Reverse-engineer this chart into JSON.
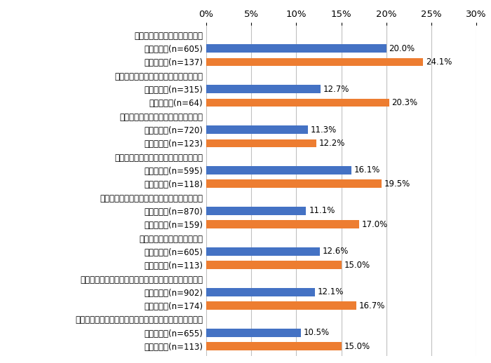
{
  "rows": [
    {
      "label": "助成金や補助金などの財源獲得",
      "type": "header",
      "value": null,
      "color": null
    },
    {
      "label": "事務系職員(n=605)",
      "type": "jimu",
      "value": 20.0,
      "color": "#4472c4"
    },
    {
      "label": "技術系職員(n=137)",
      "type": "gijutsu",
      "value": 24.1,
      "color": "#ed7d31"
    },
    {
      "label": "モデル事業や国家戦略特区などへの採択",
      "type": "header",
      "value": null,
      "color": null
    },
    {
      "label": "事務系職員(n=315)",
      "type": "jimu",
      "value": 12.7,
      "color": "#4472c4"
    },
    {
      "label": "技術系職員(n=64)",
      "type": "gijutsu",
      "value": 20.3,
      "color": "#ed7d31"
    },
    {
      "label": "事務・事業の再編・整理、廃止・統合",
      "type": "header",
      "value": null,
      "color": null
    },
    {
      "label": "事務系職員(n=720)",
      "type": "jimu",
      "value": 11.3,
      "color": "#4472c4"
    },
    {
      "label": "技術系職員(n=123)",
      "type": "gijutsu",
      "value": 12.2,
      "color": "#ed7d31"
    },
    {
      "label": "民間委託の推進や指定管理者制度の活用",
      "type": "header",
      "value": null,
      "color": null
    },
    {
      "label": "事務系職員(n=595)",
      "type": "jimu",
      "value": 16.1,
      "color": "#4472c4"
    },
    {
      "label": "技術系職員(n=118)",
      "type": "gijutsu",
      "value": 19.5,
      "color": "#ed7d31"
    },
    {
      "label": "業務の見直しや内部管理業務の効率化・集約化",
      "type": "header",
      "value": null,
      "color": null
    },
    {
      "label": "事務系職員(n=870)",
      "type": "jimu",
      "value": 11.1,
      "color": "#4472c4"
    },
    {
      "label": "技術系職員(n=159)",
      "type": "gijutsu",
      "value": 17.0,
      "color": "#ed7d31"
    },
    {
      "label": "地域住民や民間企業との連携",
      "type": "header",
      "value": null,
      "color": null
    },
    {
      "label": "事務系職員(n=605)",
      "type": "jimu",
      "value": 12.6,
      "color": "#4472c4"
    },
    {
      "label": "技術系職員(n=113)",
      "type": "gijutsu",
      "value": 15.0,
      "color": "#ed7d31"
    },
    {
      "label": "業務のデジタル化（ペーパーレス化、クラウド化など）",
      "type": "header",
      "value": null,
      "color": null
    },
    {
      "label": "事務系職員(n=902)",
      "type": "jimu",
      "value": 12.1,
      "color": "#4472c4"
    },
    {
      "label": "技術系職員(n=174)",
      "type": "gijutsu",
      "value": 16.7,
      "color": "#ed7d31"
    },
    {
      "label": "テクノロジーの活用（市販サービス・アプリの活用など）",
      "type": "header",
      "value": null,
      "color": null
    },
    {
      "label": "事務系職員(n=655)",
      "type": "jimu",
      "value": 10.5,
      "color": "#4472c4"
    },
    {
      "label": "技術系職員(n=113)",
      "type": "gijutsu",
      "value": 15.0,
      "color": "#ed7d31"
    }
  ],
  "xlim": [
    0,
    30
  ],
  "xticks": [
    0,
    5,
    10,
    15,
    20,
    25,
    30
  ],
  "xticklabels": [
    "0%",
    "5%",
    "10%",
    "15%",
    "20%",
    "25%",
    "30%"
  ],
  "bar_height": 0.6,
  "background_color": "#ffffff",
  "grid_color": "#c0c0c0",
  "text_color": "#000000",
  "value_fontsize": 8.5,
  "label_fontsize": 8.5,
  "tick_fontsize": 9.5
}
